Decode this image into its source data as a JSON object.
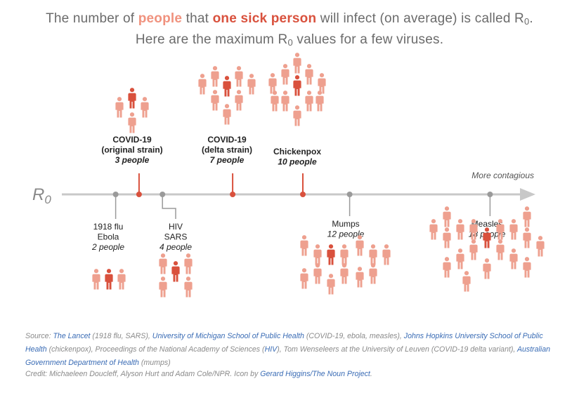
{
  "headline": {
    "line1_pre": "The number of ",
    "line1_people": "people",
    "line1_mid": " that ",
    "line1_sick": "one sick person",
    "line1_post": " will infect (on average) is called R",
    "line1_sub": "0",
    "line1_end": ".",
    "line2_pre": "Here are the maximum R",
    "line2_sub": "0",
    "line2_post": " values for a few viruses."
  },
  "axis": {
    "label": "R",
    "label_sub": "0",
    "direction_label": "More contagious"
  },
  "colors": {
    "axis": "#c8c8c8",
    "gray_marker": "#9a9a9a",
    "highlight": "#d9513d",
    "person": "#eea08f",
    "sick_person": "#d9513d"
  },
  "chart_data": {
    "type": "scatter",
    "description_axis": "R0 (maximum value), position along a horizontal line",
    "points": [
      {
        "names": [
          "1918 flu",
          "Ebola"
        ],
        "r0": 2,
        "count_label": "2 people",
        "highlight": false,
        "side": "below"
      },
      {
        "names": [
          "COVID-19",
          "(original strain)"
        ],
        "r0": 3,
        "count_label": "3 people",
        "highlight": true,
        "side": "above"
      },
      {
        "names": [
          "HIV",
          "SARS"
        ],
        "r0": 4,
        "count_label": "4 people",
        "highlight": false,
        "side": "below"
      },
      {
        "names": [
          "COVID-19",
          "(delta strain)"
        ],
        "r0": 7,
        "count_label": "7 people",
        "highlight": true,
        "side": "above"
      },
      {
        "names": [
          "Chickenpox"
        ],
        "r0": 10,
        "count_label": "10 people",
        "highlight": true,
        "side": "above"
      },
      {
        "names": [
          "Mumps"
        ],
        "r0": 12,
        "count_label": "12 people",
        "highlight": false,
        "side": "below"
      },
      {
        "names": [
          "Measles"
        ],
        "r0": 18,
        "count_label": "18 people",
        "highlight": false,
        "side": "below"
      }
    ]
  },
  "source": {
    "prefix": "Source: ",
    "lancet": "The Lancet",
    "lancet_note": " (1918 flu, SARS), ",
    "umich": "University of Michigan School of Public Health",
    "umich_note": " (COVID-19, ebola, measles), ",
    "jhu": "Johns Hopkins University School of Public Health",
    "jhu_note": " (chickenpox), Proceedings of the National Academy of Sciences (",
    "hiv": "HIV",
    "hiv_note": "), Tom Wenseleers at the University of Leuven (COVID-19 delta variant), ",
    "aus": "Australian Government Department of Health",
    "aus_note": " (mumps)"
  },
  "credit": {
    "text": "Credit: Michaeleen Doucleff, Alyson Hurt and Adam Cole/NPR. Icon by ",
    "link": "Gerard Higgins/The Noun Project",
    "end": "."
  }
}
